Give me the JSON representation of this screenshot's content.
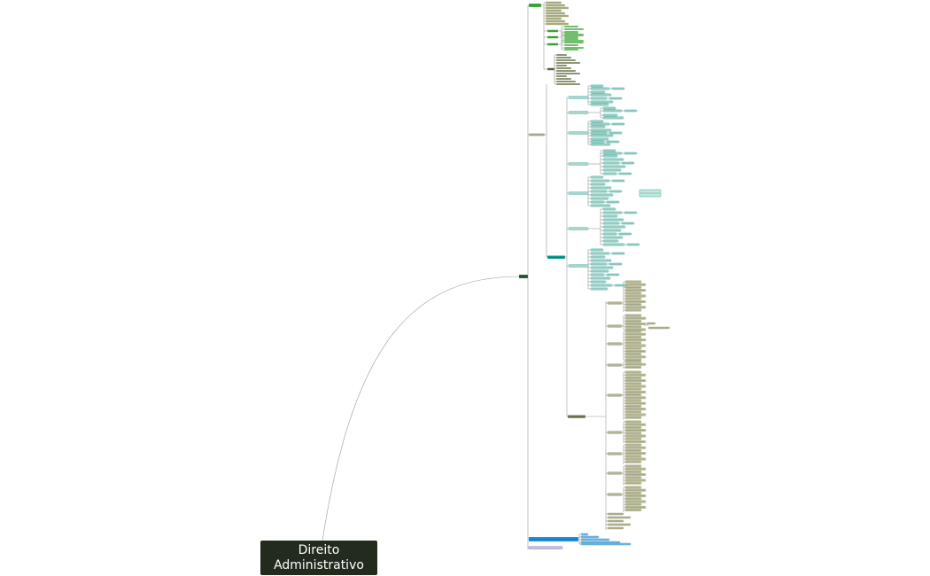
{
  "mindmap": {
    "root": {
      "line1": "Direito",
      "line2": "Administrativo"
    },
    "colors": {
      "background": "#ffffff",
      "root_fill": "#232b1f",
      "root_text": "#ffffff",
      "connector": "#9a9a9a",
      "hub": "#2e5e3a",
      "branch_green": "#3fae3f",
      "branch_olive": "#b7bb8e",
      "branch_teal": "#0f9a8f",
      "leaf_teal": "#bfe8de",
      "branch_dark_olive": "#6f7b55",
      "leaf_olive": "#c9c9a4",
      "branch_blue": "#1f8fe0",
      "leaf_blue": "#8fd0f2",
      "branch_purple": "#5a54a8"
    }
  }
}
